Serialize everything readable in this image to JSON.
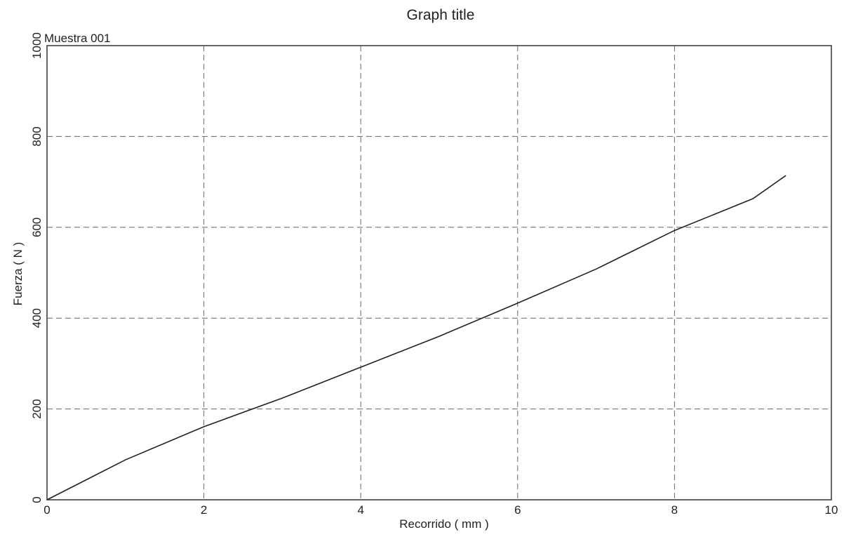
{
  "chart_data": {
    "type": "line",
    "title": "Graph title",
    "annotation": "Muestra 001",
    "x_label": "Recorrido ( mm )",
    "y_label": "Fuerza ( N )",
    "x": [
      0,
      1,
      2,
      3,
      4,
      5,
      6,
      7,
      8,
      9,
      9.42
    ],
    "values": [
      0,
      88,
      161,
      224,
      292,
      360,
      433,
      508,
      593,
      663,
      714
    ],
    "color": "#222222",
    "grid_color": "#666666",
    "xlim": [
      0,
      10
    ],
    "xticks": [
      0,
      2,
      4,
      6,
      8,
      10
    ],
    "ylim": [
      0,
      1000
    ],
    "yticks": [
      0,
      200,
      400,
      600,
      800,
      1000
    ],
    "grid": true
  }
}
